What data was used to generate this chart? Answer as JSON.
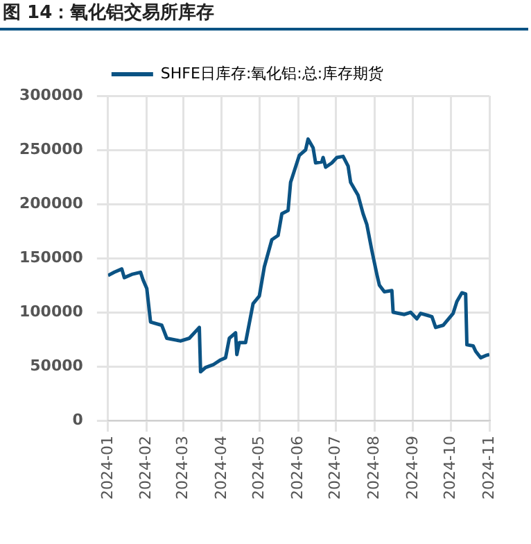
{
  "chart_data": {
    "type": "line",
    "title": "图 14：氧化铝交易所库存",
    "x": [
      "2024-01-01",
      "2024-01-06",
      "2024-01-12",
      "2024-01-14",
      "2024-01-20",
      "2024-01-27",
      "2024-01-29",
      "2024-02-01",
      "2024-02-04",
      "2024-02-13",
      "2024-02-17",
      "2024-02-28",
      "2024-03-06",
      "2024-03-14",
      "2024-03-15",
      "2024-03-19",
      "2024-03-25",
      "2024-03-31",
      "2024-04-04",
      "2024-04-07",
      "2024-04-12",
      "2024-04-13",
      "2024-04-15",
      "2024-04-20",
      "2024-04-26",
      "2024-05-01",
      "2024-05-05",
      "2024-05-11",
      "2024-05-16",
      "2024-05-19",
      "2024-05-24",
      "2024-05-26",
      "2024-06-02",
      "2024-06-07",
      "2024-06-09",
      "2024-06-13",
      "2024-06-15",
      "2024-06-20",
      "2024-06-21",
      "2024-06-23",
      "2024-06-28",
      "2024-07-02",
      "2024-07-07",
      "2024-07-11",
      "2024-07-13",
      "2024-07-19",
      "2024-07-23",
      "2024-07-26",
      "2024-07-30",
      "2024-08-03",
      "2024-08-05",
      "2024-08-09",
      "2024-08-15",
      "2024-08-16",
      "2024-08-25",
      "2024-08-30",
      "2024-09-04",
      "2024-09-07",
      "2024-09-13",
      "2024-09-16",
      "2024-09-19",
      "2024-09-25",
      "2024-10-03",
      "2024-10-06",
      "2024-10-10",
      "2024-10-13",
      "2024-10-14",
      "2024-10-19",
      "2024-10-21",
      "2024-10-25",
      "2024-10-29",
      "2024-11-01"
    ],
    "series": [
      {
        "name": "SHFE日库存:氧化铝:总:库存期货",
        "color": "#0b5384",
        "values": [
          134000,
          137000,
          140000,
          132000,
          135000,
          137000,
          130000,
          122000,
          91000,
          88000,
          76000,
          73500,
          76000,
          86000,
          45000,
          49000,
          51500,
          56000,
          58000,
          76000,
          81000,
          61000,
          72000,
          72000,
          108000,
          115000,
          142000,
          167000,
          171000,
          191000,
          194000,
          220000,
          245000,
          250000,
          260000,
          252000,
          238000,
          239000,
          243000,
          234000,
          238000,
          243000,
          244000,
          235000,
          220000,
          208000,
          191000,
          181000,
          157000,
          135000,
          125000,
          119000,
          120000,
          100000,
          98000,
          100000,
          94000,
          99000,
          97000,
          96000,
          86000,
          88000,
          99000,
          110000,
          118000,
          117000,
          70000,
          69000,
          64000,
          58000,
          60000,
          61000
        ]
      }
    ],
    "xlim": [
      "2024-01-01",
      "2024-11-01"
    ],
    "xticks": [
      {
        "value": "2024-01-01",
        "label": "2024-01"
      },
      {
        "value": "2024-02-01",
        "label": "2024-02"
      },
      {
        "value": "2024-03-01",
        "label": "2024-03"
      },
      {
        "value": "2024-04-01",
        "label": "2024-04"
      },
      {
        "value": "2024-05-01",
        "label": "2024-05"
      },
      {
        "value": "2024-06-01",
        "label": "2024-06"
      },
      {
        "value": "2024-07-01",
        "label": "2024-07"
      },
      {
        "value": "2024-08-01",
        "label": "2024-08"
      },
      {
        "value": "2024-09-01",
        "label": "2024-09"
      },
      {
        "value": "2024-10-01",
        "label": "2024-10"
      },
      {
        "value": "2024-11-01",
        "label": "2024-11"
      }
    ],
    "ylim": [
      0,
      300000
    ],
    "yticks": [
      0,
      50000,
      100000,
      150000,
      200000,
      250000,
      300000
    ],
    "grid": true,
    "legend": "top",
    "marker": "none",
    "line_style": "solid"
  }
}
